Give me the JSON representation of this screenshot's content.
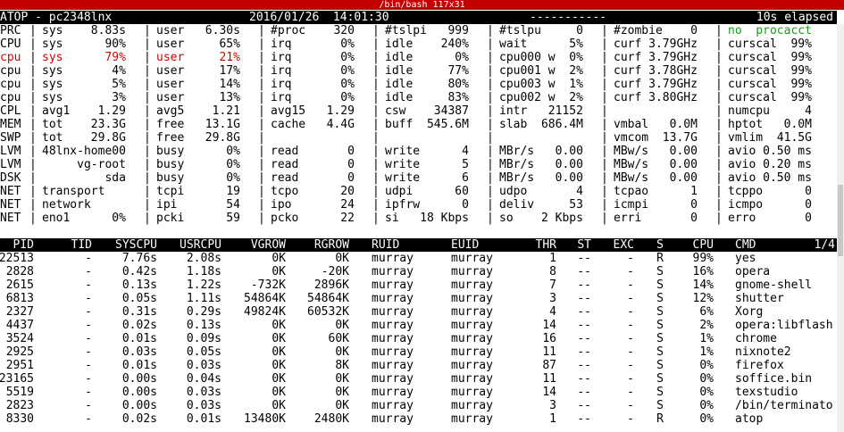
{
  "window": {
    "title": "/bin/bash 117x31"
  },
  "status": {
    "app": "ATOP - pc2348lnx",
    "datetime": "2016/01/26  14:01:30",
    "dashes": "-----------",
    "elapsed": "10s elapsed"
  },
  "sys_rows": [
    {
      "label": "PRC",
      "cells": [
        "sys    8.83s",
        "user   6.30s",
        "#proc    320",
        "#tslpi   999",
        "#tslpu     0",
        "#zombie    0",
        "no  procacct"
      ],
      "cls": [
        "",
        "",
        "",
        "",
        "",
        "",
        ""
      ]
    },
    {
      "label": "CPU",
      "cells": [
        "sys      90%",
        "user     65%",
        "irq       0%",
        "idle    240%",
        "wait      5%",
        "curf 3.79GHz",
        "curscal  99%"
      ]
    },
    {
      "label": "cpu",
      "cells": [
        "sys      79%",
        "user     21%",
        "irq       0%",
        "idle      0%",
        "cpu000 w  0%",
        "curf 3.79GHz",
        "curscal  99%"
      ],
      "red": true
    },
    {
      "label": "cpu",
      "cells": [
        "sys       4%",
        "user     17%",
        "irq       0%",
        "idle     77%",
        "cpu001 w  2%",
        "curf 3.78GHz",
        "curscal  99%"
      ]
    },
    {
      "label": "cpu",
      "cells": [
        "sys       5%",
        "user     14%",
        "irq       0%",
        "idle     80%",
        "cpu003 w  1%",
        "curf 3.79GHz",
        "curscal  99%"
      ]
    },
    {
      "label": "cpu",
      "cells": [
        "sys       3%",
        "user     13%",
        "irq       0%",
        "idle     83%",
        "cpu002 w  2%",
        "curf 3.80GHz",
        "curscal  99%"
      ]
    },
    {
      "label": "CPL",
      "cells": [
        "avg1    1.29",
        "avg5    1.21",
        "avg15   1.29",
        "csw    34387",
        "intr   21152",
        "",
        "numcpu     4"
      ]
    },
    {
      "label": "MEM",
      "cells": [
        "tot    23.3G",
        "free   13.1G",
        "cache   4.4G",
        "buff  545.6M",
        "slab  686.4M",
        "vmbal   0.0M",
        "hptot   0.0M"
      ]
    },
    {
      "label": "SWP",
      "cells": [
        "tot    29.8G",
        "free   29.8G",
        "",
        "",
        "",
        "vmcom  13.7G",
        "vmlim  41.5G"
      ]
    },
    {
      "label": "LVM",
      "cells": [
        "48lnx-home00",
        "busy      0%",
        "read       0",
        "write      4",
        "MBr/s   0.00",
        "MBw/s   0.00",
        "avio 0.50 ms"
      ]
    },
    {
      "label": "LVM",
      "cells": [
        "     vg-root",
        "busy      0%",
        "read       0",
        "write      5",
        "MBr/s   0.00",
        "MBw/s   0.00",
        "avio 0.20 ms"
      ]
    },
    {
      "label": "DSK",
      "cells": [
        "         sda",
        "busy      0%",
        "read       0",
        "write      6",
        "MBr/s   0.00",
        "MBw/s   0.00",
        "avio 0.50 ms"
      ]
    },
    {
      "label": "NET",
      "cells": [
        "transport",
        "tcpi      19",
        "tcpo      20",
        "udpi      60",
        "udpo       4",
        "tcpao      1",
        "tcppo      0"
      ]
    },
    {
      "label": "NET",
      "cells": [
        "network",
        "ipi       54",
        "ipo       24",
        "ipfrw      0",
        "deliv     53",
        "icmpi      0",
        "icmpo      0"
      ]
    },
    {
      "label": "NET",
      "cells": [
        "eno1      0%",
        "pcki      59",
        "pcko      22",
        "si   18 Kbps",
        "so    2 Kbps",
        "erri       0",
        "erro       0"
      ]
    }
  ],
  "proc_header": [
    "PID",
    "TID",
    "SYSCPU",
    "USRCPU",
    "VGROW",
    "RGROW",
    "RUID",
    "EUID",
    "THR",
    "ST",
    "EXC",
    "S",
    "CPU",
    "CMD",
    "1/4"
  ],
  "procs": [
    [
      "22513",
      "-",
      "7.76s",
      "2.08s",
      "0K",
      "0K",
      "murray",
      "murray",
      "1",
      "--",
      "-",
      "R",
      "99%",
      "yes"
    ],
    [
      "2828",
      "-",
      "0.42s",
      "1.18s",
      "0K",
      "-20K",
      "murray",
      "murray",
      "8",
      "--",
      "-",
      "S",
      "16%",
      "opera"
    ],
    [
      "2615",
      "-",
      "0.13s",
      "1.22s",
      "-732K",
      "2896K",
      "murray",
      "murray",
      "7",
      "--",
      "-",
      "S",
      "14%",
      "gnome-shell"
    ],
    [
      "6813",
      "-",
      "0.05s",
      "1.11s",
      "54864K",
      "54864K",
      "murray",
      "murray",
      "3",
      "--",
      "-",
      "S",
      "12%",
      "shutter"
    ],
    [
      "2327",
      "-",
      "0.31s",
      "0.29s",
      "49824K",
      "60532K",
      "murray",
      "murray",
      "4",
      "--",
      "-",
      "S",
      "6%",
      "Xorg"
    ],
    [
      "4437",
      "-",
      "0.02s",
      "0.13s",
      "0K",
      "0K",
      "murray",
      "murray",
      "14",
      "--",
      "-",
      "S",
      "2%",
      "opera:libflash"
    ],
    [
      "3524",
      "-",
      "0.01s",
      "0.09s",
      "0K",
      "60K",
      "murray",
      "murray",
      "16",
      "--",
      "-",
      "S",
      "1%",
      "chrome"
    ],
    [
      "2925",
      "-",
      "0.03s",
      "0.05s",
      "0K",
      "0K",
      "murray",
      "murray",
      "11",
      "--",
      "-",
      "S",
      "1%",
      "nixnote2"
    ],
    [
      "2951",
      "-",
      "0.01s",
      "0.03s",
      "0K",
      "8K",
      "murray",
      "murray",
      "87",
      "--",
      "-",
      "S",
      "0%",
      "firefox"
    ],
    [
      "23165",
      "-",
      "0.00s",
      "0.04s",
      "0K",
      "0K",
      "murray",
      "murray",
      "11",
      "--",
      "-",
      "S",
      "0%",
      "soffice.bin"
    ],
    [
      "5519",
      "-",
      "0.00s",
      "0.03s",
      "0K",
      "0K",
      "murray",
      "murray",
      "14",
      "--",
      "-",
      "S",
      "0%",
      "texstudio"
    ],
    [
      "2823",
      "-",
      "0.00s",
      "0.03s",
      "0K",
      "0K",
      "murray",
      "murray",
      "3",
      "--",
      "-",
      "S",
      "0%",
      "/bin/terminato"
    ],
    [
      "8330",
      "-",
      "0.02s",
      "0.01s",
      "13480K",
      "2480K",
      "murray",
      "murray",
      "1",
      "--",
      "-",
      "R",
      "0%",
      "atop"
    ]
  ]
}
